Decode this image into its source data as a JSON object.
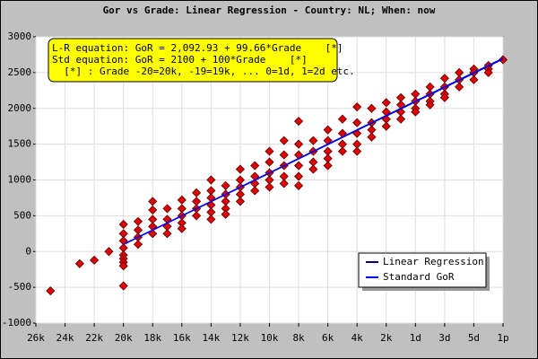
{
  "chart_data": {
    "type": "scatter",
    "title": "Gor vs Grade: Linear Regression - Country: NL; When: now",
    "annotations": [
      "L-R equation: GoR = 2,092.93 + 99.66*Grade    [*]",
      "Std equation: GoR = 2100 + 100*Grade    [*]",
      "  [*] : Grade -20=20k, -19=19k, ... 0=1d, 1=2d etc."
    ],
    "xlim": [
      -26,
      6
    ],
    "xticks": [
      {
        "value": -26,
        "label": "26k"
      },
      {
        "value": -24,
        "label": "24k"
      },
      {
        "value": -22,
        "label": "22k"
      },
      {
        "value": -20,
        "label": "20k"
      },
      {
        "value": -18,
        "label": "18k"
      },
      {
        "value": -16,
        "label": "16k"
      },
      {
        "value": -14,
        "label": "14k"
      },
      {
        "value": -12,
        "label": "12k"
      },
      {
        "value": -10,
        "label": "10k"
      },
      {
        "value": -8,
        "label": "8k"
      },
      {
        "value": -6,
        "label": "6k"
      },
      {
        "value": -4,
        "label": "4k"
      },
      {
        "value": -2,
        "label": "2k"
      },
      {
        "value": 0,
        "label": "1d"
      },
      {
        "value": 2,
        "label": "3d"
      },
      {
        "value": 4,
        "label": "5d"
      },
      {
        "value": 6,
        "label": "1p"
      }
    ],
    "ylim": [
      -1000,
      3000
    ],
    "yticks": [
      -1000,
      -500,
      0,
      500,
      1000,
      1500,
      2000,
      2500,
      3000
    ],
    "grid": true,
    "points": {
      "color": "#e00000",
      "x": [
        -25,
        -23,
        -22,
        -21,
        -20,
        -20,
        -20,
        -20,
        -20,
        -20,
        -20,
        -20,
        -20,
        -19,
        -19,
        -19,
        -19,
        -18,
        -18,
        -18,
        -18,
        -18,
        -17,
        -17,
        -17,
        -17,
        -16,
        -16,
        -16,
        -16,
        -16,
        -15,
        -15,
        -15,
        -15,
        -14,
        -14,
        -14,
        -14,
        -14,
        -14,
        -13,
        -13,
        -13,
        -13,
        -13,
        -12,
        -12,
        -12,
        -12,
        -12,
        -11,
        -11,
        -11,
        -11,
        -10,
        -10,
        -10,
        -10,
        -10,
        -9,
        -9,
        -9,
        -9,
        -9,
        -8,
        -8,
        -8,
        -8,
        -8,
        -8,
        -7,
        -7,
        -7,
        -7,
        -6,
        -6,
        -6,
        -6,
        -6,
        -5,
        -5,
        -5,
        -5,
        -4,
        -4,
        -4,
        -4,
        -4,
        -3,
        -3,
        -3,
        -3,
        -2,
        -2,
        -2,
        -2,
        -1,
        -1,
        -1,
        -1,
        0,
        0,
        0,
        0,
        1,
        1,
        1,
        1,
        2,
        2,
        2,
        2,
        3,
        3,
        3,
        4,
        4,
        4,
        5,
        5,
        5,
        6
      ],
      "values": [
        -550,
        -170,
        -120,
        0,
        380,
        250,
        150,
        50,
        -50,
        -100,
        -150,
        -200,
        -480,
        420,
        300,
        200,
        100,
        700,
        580,
        450,
        350,
        250,
        600,
        450,
        350,
        250,
        720,
        600,
        500,
        400,
        320,
        820,
        700,
        600,
        500,
        1000,
        850,
        750,
        650,
        550,
        450,
        920,
        800,
        700,
        600,
        520,
        1150,
        1000,
        900,
        800,
        700,
        1200,
        1050,
        950,
        850,
        1400,
        1250,
        1100,
        1000,
        900,
        1550,
        1350,
        1200,
        1050,
        950,
        1820,
        1500,
        1350,
        1200,
        1050,
        920,
        1550,
        1400,
        1250,
        1150,
        1700,
        1550,
        1400,
        1300,
        1200,
        1850,
        1650,
        1500,
        1400,
        2020,
        1800,
        1650,
        1500,
        1400,
        2000,
        1800,
        1700,
        1600,
        2080,
        1950,
        1850,
        1750,
        2150,
        2050,
        1950,
        1850,
        2200,
        2100,
        2000,
        1950,
        2300,
        2200,
        2100,
        2050,
        2420,
        2300,
        2200,
        2150,
        2500,
        2400,
        2300,
        2550,
        2500,
        2400,
        2600,
        2550,
        2500,
        2680
      ]
    },
    "series": [
      {
        "name": "Linear Regression",
        "color": "#000080",
        "x": [
          -20,
          6
        ],
        "values": [
          99.73,
          2690.89
        ]
      },
      {
        "name": "Standard GoR",
        "color": "#0000ff",
        "x": [
          -20,
          6
        ],
        "values": [
          100,
          2700
        ]
      }
    ]
  }
}
